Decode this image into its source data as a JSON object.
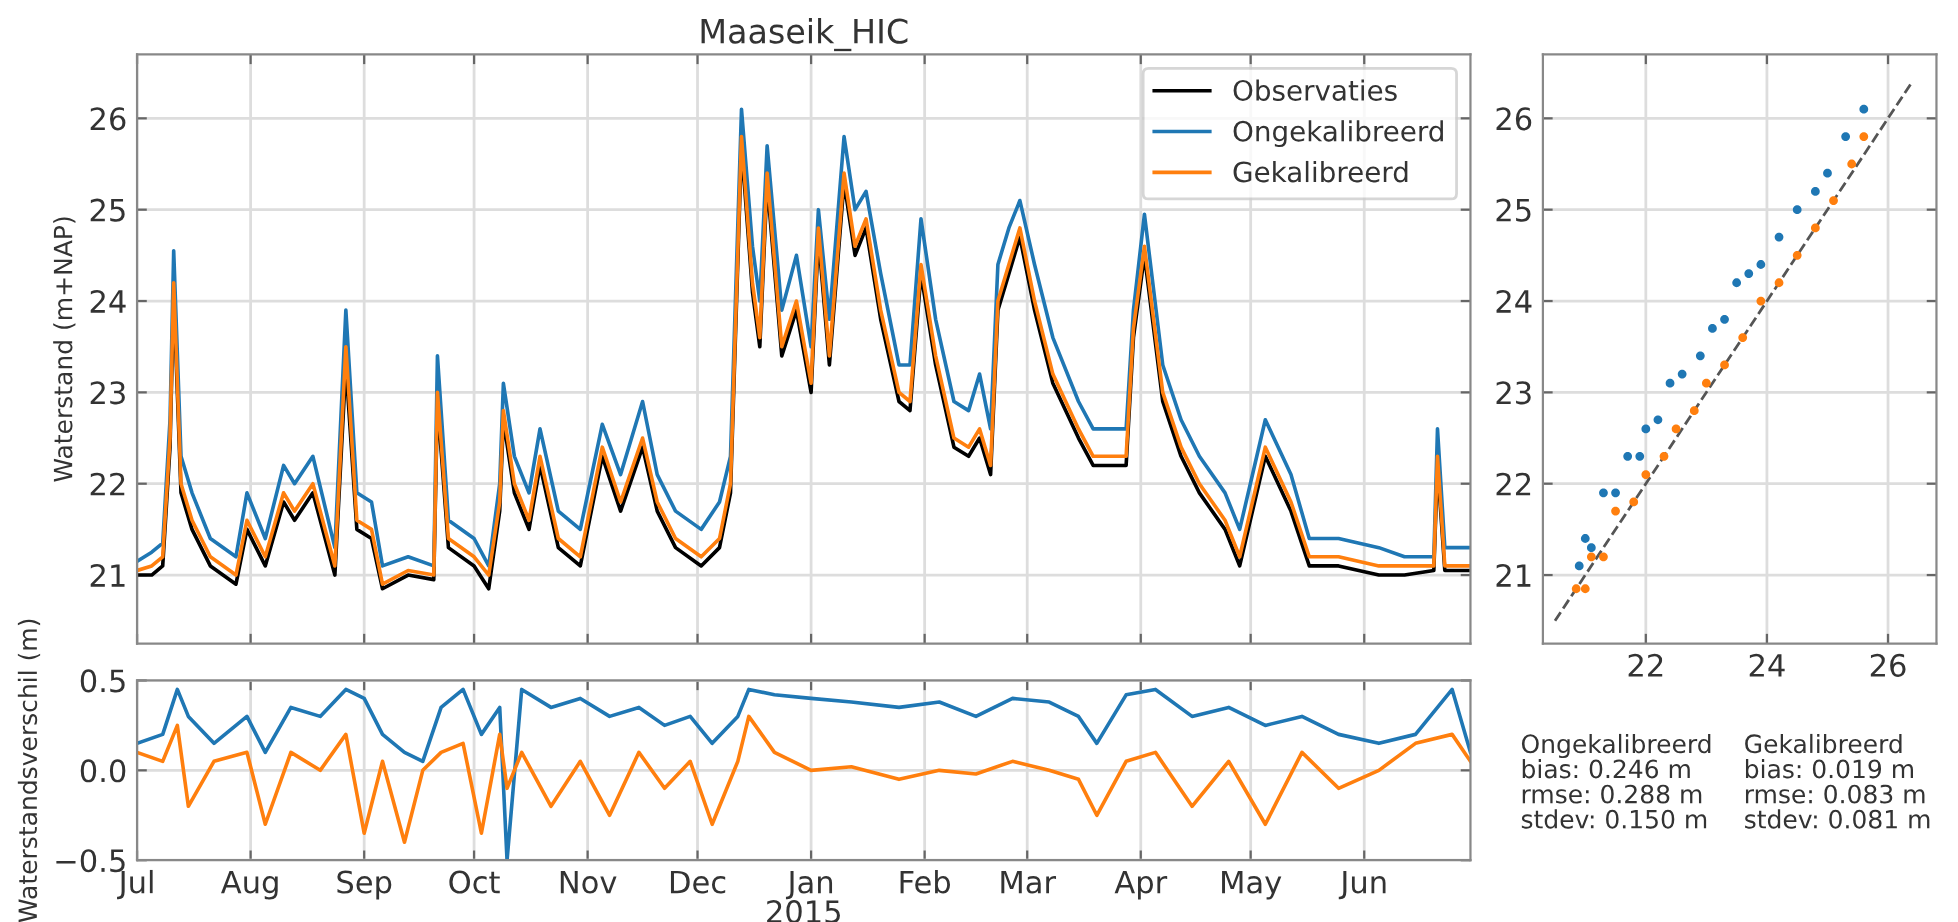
{
  "chart_data": [
    {
      "type": "line",
      "title": "Maaseik_HIC",
      "ylabel": "Waterstand (m+NAP)",
      "grid": true,
      "legend": "top right",
      "tick_labels": "y",
      "xlim": [
        "2014-07-01",
        "2015-06-30"
      ],
      "xticks": [
        {
          "value": "2014-07-01",
          "label": null
        },
        {
          "value": "2014-08-01",
          "label": null
        },
        {
          "value": "2014-09-01",
          "label": null
        },
        {
          "value": "2014-10-01",
          "label": null
        },
        {
          "value": "2014-11-01",
          "label": null
        },
        {
          "value": "2014-12-01",
          "label": null
        },
        {
          "value": "2015-01-01",
          "label": null
        },
        {
          "value": "2015-02-01",
          "label": null
        },
        {
          "value": "2015-03-01",
          "label": null
        },
        {
          "value": "2015-04-01",
          "label": null
        },
        {
          "value": "2015-05-01",
          "label": null
        },
        {
          "value": "2015-06-01",
          "label": null
        }
      ],
      "ylim": [
        20.25,
        26.7
      ],
      "yticks": [
        21,
        22,
        23,
        24,
        25,
        26
      ],
      "x": [
        "2014-07-01",
        "2014-07-05",
        "2014-07-08",
        "2014-07-10",
        "2014-07-11",
        "2014-07-13",
        "2014-07-16",
        "2014-07-21",
        "2014-07-28",
        "2014-07-31",
        "2014-08-05",
        "2014-08-10",
        "2014-08-13",
        "2014-08-18",
        "2014-08-24",
        "2014-08-27",
        "2014-08-30",
        "2014-09-03",
        "2014-09-06",
        "2014-09-13",
        "2014-09-20",
        "2014-09-21",
        "2014-09-24",
        "2014-10-01",
        "2014-10-05",
        "2014-10-08",
        "2014-10-09",
        "2014-10-12",
        "2014-10-16",
        "2014-10-19",
        "2014-10-24",
        "2014-10-30",
        "2014-11-05",
        "2014-11-10",
        "2014-11-16",
        "2014-11-20",
        "2014-11-25",
        "2014-12-02",
        "2014-12-07",
        "2014-12-10",
        "2014-12-13",
        "2014-12-16",
        "2014-12-18",
        "2014-12-20",
        "2014-12-24",
        "2014-12-28",
        "2015-01-01",
        "2015-01-03",
        "2015-01-06",
        "2015-01-10",
        "2015-01-13",
        "2015-01-16",
        "2015-01-20",
        "2015-01-25",
        "2015-01-28",
        "2015-01-31",
        "2015-02-04",
        "2015-02-09",
        "2015-02-13",
        "2015-02-16",
        "2015-02-19",
        "2015-02-21",
        "2015-02-24",
        "2015-02-27",
        "2015-03-03",
        "2015-03-08",
        "2015-03-15",
        "2015-03-19",
        "2015-03-23",
        "2015-03-28",
        "2015-03-30",
        "2015-04-02",
        "2015-04-07",
        "2015-04-12",
        "2015-04-17",
        "2015-04-24",
        "2015-04-28",
        "2015-05-05",
        "2015-05-12",
        "2015-05-17",
        "2015-05-25",
        "2015-06-05",
        "2015-06-12",
        "2015-06-20",
        "2015-06-21",
        "2015-06-23",
        "2015-06-30"
      ],
      "series": [
        {
          "name": "Observaties",
          "color": "#000000",
          "values": [
            21.0,
            21.0,
            21.1,
            22.4,
            24.1,
            21.9,
            21.5,
            21.1,
            20.9,
            21.5,
            21.1,
            21.8,
            21.6,
            21.9,
            21.0,
            23.3,
            21.5,
            21.4,
            20.85,
            21.0,
            20.95,
            22.9,
            21.3,
            21.1,
            20.85,
            21.7,
            22.7,
            21.9,
            21.5,
            22.2,
            21.3,
            21.1,
            22.3,
            21.7,
            22.4,
            21.7,
            21.3,
            21.1,
            21.3,
            21.9,
            25.7,
            24.1,
            23.5,
            25.3,
            23.4,
            23.9,
            23.0,
            24.7,
            23.3,
            25.3,
            24.5,
            24.8,
            23.8,
            22.9,
            22.8,
            24.3,
            23.3,
            22.4,
            22.3,
            22.5,
            22.1,
            23.9,
            24.3,
            24.7,
            23.9,
            23.1,
            22.5,
            22.2,
            22.2,
            22.2,
            23.6,
            24.5,
            22.9,
            22.3,
            21.9,
            21.5,
            21.1,
            22.3,
            21.7,
            21.1,
            21.1,
            21.0,
            21.0,
            21.05,
            22.2,
            21.05,
            21.05
          ]
        },
        {
          "name": "Ongekalibreerd",
          "color": "#1f77b4",
          "values": [
            21.15,
            21.25,
            21.35,
            22.7,
            24.55,
            22.3,
            21.9,
            21.4,
            21.2,
            21.9,
            21.4,
            22.2,
            22.0,
            22.3,
            21.3,
            23.9,
            21.9,
            21.8,
            21.1,
            21.2,
            21.1,
            23.4,
            21.6,
            21.4,
            21.1,
            22.0,
            23.1,
            22.3,
            21.9,
            22.6,
            21.7,
            21.5,
            22.65,
            22.1,
            22.9,
            22.1,
            21.7,
            21.5,
            21.8,
            22.3,
            26.1,
            24.6,
            24.0,
            25.7,
            23.9,
            24.5,
            23.5,
            25.0,
            23.8,
            25.8,
            25.0,
            25.2,
            24.3,
            23.3,
            23.3,
            24.9,
            23.8,
            22.9,
            22.8,
            23.2,
            22.6,
            24.4,
            24.8,
            25.1,
            24.4,
            23.6,
            22.9,
            22.6,
            22.6,
            22.6,
            23.9,
            24.95,
            23.3,
            22.7,
            22.3,
            21.9,
            21.5,
            22.7,
            22.1,
            21.4,
            21.4,
            21.3,
            21.2,
            21.2,
            22.6,
            21.3,
            21.3
          ]
        },
        {
          "name": "Gekalibreerd",
          "color": "#ff7f0e",
          "values": [
            21.05,
            21.1,
            21.2,
            22.5,
            24.2,
            22.0,
            21.6,
            21.2,
            21.0,
            21.6,
            21.2,
            21.9,
            21.7,
            22.0,
            21.1,
            23.5,
            21.6,
            21.5,
            20.9,
            21.05,
            21.0,
            23.0,
            21.4,
            21.2,
            21.0,
            21.8,
            22.8,
            22.0,
            21.6,
            22.3,
            21.4,
            21.2,
            22.4,
            21.8,
            22.5,
            21.8,
            21.4,
            21.2,
            21.4,
            22.0,
            25.8,
            24.2,
            23.6,
            25.4,
            23.5,
            24.0,
            23.1,
            24.8,
            23.4,
            25.4,
            24.6,
            24.9,
            23.9,
            23.0,
            22.9,
            24.4,
            23.4,
            22.5,
            22.4,
            22.6,
            22.2,
            24.0,
            24.4,
            24.8,
            24.0,
            23.2,
            22.6,
            22.3,
            22.3,
            22.3,
            23.7,
            24.6,
            23.0,
            22.4,
            22.0,
            21.6,
            21.2,
            22.4,
            21.8,
            21.2,
            21.2,
            21.1,
            21.1,
            21.1,
            22.3,
            21.1,
            21.1
          ]
        }
      ]
    },
    {
      "type": "line",
      "ylabel": "Waterstandsverschil (m)",
      "xlabel": "2015",
      "grid": true,
      "xlim": [
        "2014-07-01",
        "2015-06-30"
      ],
      "xticks": [
        {
          "value": "2014-07-01",
          "label": "Jul"
        },
        {
          "value": "2014-08-01",
          "label": "Aug"
        },
        {
          "value": "2014-09-01",
          "label": "Sep"
        },
        {
          "value": "2014-10-01",
          "label": "Oct"
        },
        {
          "value": "2014-11-01",
          "label": "Nov"
        },
        {
          "value": "2014-12-01",
          "label": "Dec"
        },
        {
          "value": "2015-01-01",
          "label": "Jan"
        },
        {
          "value": "2015-02-01",
          "label": "Feb"
        },
        {
          "value": "2015-03-01",
          "label": "Mar"
        },
        {
          "value": "2015-04-01",
          "label": "Apr"
        },
        {
          "value": "2015-05-01",
          "label": "May"
        },
        {
          "value": "2015-06-01",
          "label": "Jun"
        }
      ],
      "ylim": [
        -0.5,
        0.5
      ],
      "yticks": [
        {
          "value": -0.5,
          "label": "−0.5"
        },
        {
          "value": 0,
          "label": "0.0"
        },
        {
          "value": 0.5,
          "label": "0.5"
        }
      ],
      "x": [
        "2014-07-01",
        "2014-07-08",
        "2014-07-12",
        "2014-07-15",
        "2014-07-22",
        "2014-07-31",
        "2014-08-05",
        "2014-08-12",
        "2014-08-20",
        "2014-08-27",
        "2014-09-01",
        "2014-09-06",
        "2014-09-12",
        "2014-09-17",
        "2014-09-22",
        "2014-09-28",
        "2014-10-03",
        "2014-10-08",
        "2014-10-10",
        "2014-10-14",
        "2014-10-22",
        "2014-10-30",
        "2014-11-07",
        "2014-11-15",
        "2014-11-22",
        "2014-11-29",
        "2014-12-05",
        "2014-12-12",
        "2014-12-15",
        "2014-12-22",
        "2015-01-01",
        "2015-01-12",
        "2015-01-25",
        "2015-02-05",
        "2015-02-15",
        "2015-02-25",
        "2015-03-07",
        "2015-03-15",
        "2015-03-20",
        "2015-03-28",
        "2015-04-05",
        "2015-04-15",
        "2015-04-25",
        "2015-05-05",
        "2015-05-15",
        "2015-05-25",
        "2015-06-05",
        "2015-06-15",
        "2015-06-25",
        "2015-06-30"
      ],
      "series": [
        {
          "color": "#1f77b4",
          "values": [
            0.15,
            0.2,
            0.45,
            0.3,
            0.15,
            0.3,
            0.1,
            0.35,
            0.3,
            0.45,
            0.4,
            0.2,
            0.1,
            0.05,
            0.35,
            0.45,
            0.2,
            0.35,
            -0.5,
            0.45,
            0.35,
            0.4,
            0.3,
            0.35,
            0.25,
            0.3,
            0.15,
            0.3,
            0.45,
            0.42,
            0.4,
            0.38,
            0.35,
            0.38,
            0.3,
            0.4,
            0.38,
            0.3,
            0.15,
            0.42,
            0.45,
            0.3,
            0.35,
            0.25,
            0.3,
            0.2,
            0.15,
            0.2,
            0.45,
            0.1
          ]
        },
        {
          "color": "#ff7f0e",
          "values": [
            0.1,
            0.05,
            0.25,
            -0.2,
            0.05,
            0.1,
            -0.3,
            0.1,
            0.0,
            0.2,
            -0.35,
            0.05,
            -0.4,
            0.0,
            0.1,
            0.15,
            -0.35,
            0.2,
            -0.1,
            0.1,
            -0.2,
            0.05,
            -0.25,
            0.1,
            -0.1,
            0.05,
            -0.3,
            0.05,
            0.3,
            0.1,
            0.0,
            0.02,
            -0.05,
            0.0,
            -0.02,
            0.05,
            0.0,
            -0.05,
            -0.25,
            0.05,
            0.1,
            -0.2,
            0.05,
            -0.3,
            0.1,
            -0.1,
            0.0,
            0.15,
            0.2,
            0.05
          ]
        }
      ]
    },
    {
      "type": "scatter",
      "grid": true,
      "xlim": [
        20.3,
        26.8
      ],
      "xticks": [
        22,
        24,
        26
      ],
      "ylim": [
        20.25,
        26.7
      ],
      "yticks": [
        21,
        22,
        23,
        24,
        25,
        26
      ],
      "series": [
        {
          "color": "#1f77b4",
          "marker": "circle",
          "x": [
            20.9,
            21.0,
            21.1,
            21.3,
            21.5,
            21.7,
            21.9,
            22.0,
            22.2,
            22.4,
            22.6,
            22.9,
            23.1,
            23.3,
            23.5,
            23.7,
            23.9,
            24.2,
            24.5,
            24.8,
            25.0,
            25.3,
            25.6
          ],
          "values": [
            21.1,
            21.4,
            21.3,
            21.9,
            21.9,
            22.3,
            22.3,
            22.6,
            22.7,
            23.1,
            23.2,
            23.4,
            23.7,
            23.8,
            24.2,
            24.3,
            24.4,
            24.7,
            25.0,
            25.2,
            25.4,
            25.8,
            26.1
          ]
        },
        {
          "color": "#ff7f0e",
          "marker": "circle",
          "x": [
            20.85,
            21.0,
            21.1,
            21.3,
            21.5,
            21.8,
            22.0,
            22.3,
            22.5,
            22.8,
            23.0,
            23.3,
            23.6,
            23.9,
            24.2,
            24.5,
            24.8,
            25.1,
            25.4,
            25.6
          ],
          "values": [
            20.85,
            20.85,
            21.2,
            21.2,
            21.7,
            21.8,
            22.1,
            22.3,
            22.6,
            22.8,
            23.1,
            23.3,
            23.6,
            24.0,
            24.2,
            24.5,
            24.8,
            25.1,
            25.5,
            25.8
          ]
        },
        {
          "type": "line",
          "line_style": "dashed",
          "color": "#555555",
          "x": [
            20.5,
            26.4
          ],
          "values": [
            20.5,
            26.4
          ]
        }
      ]
    },
    {
      "type": "other",
      "annotations": [
        "Ongekalibreerd\nbias: 0.246 m\nrmse: 0.288 m\nstdev: 0.150 m",
        "Gekalibreerd\nbias: 0.019 m\nrmse: 0.083 m\nstdev: 0.081 m"
      ]
    }
  ]
}
